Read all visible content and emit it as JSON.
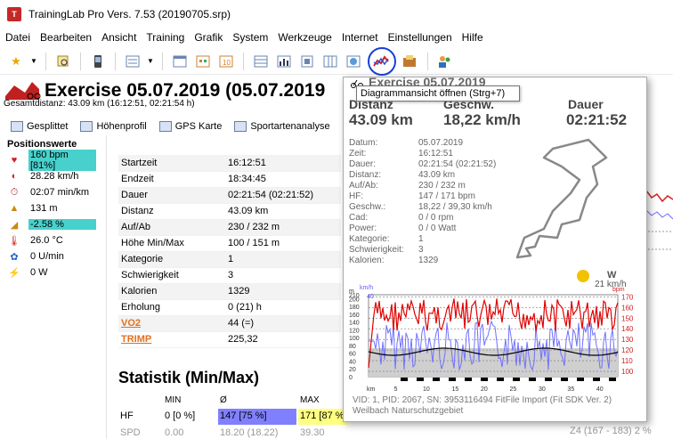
{
  "window": {
    "title": "TrainingLab Pro Vers. 7.53 (20190705.srp)"
  },
  "menu": [
    "Datei",
    "Bearbeiten",
    "Ansicht",
    "Training",
    "Grafik",
    "System",
    "Werkzeuge",
    "Internet",
    "Einstellungen",
    "Hilfe"
  ],
  "toolbar": {
    "icons": [
      "star-icon",
      "search-icon",
      "device-icon",
      "list-icon",
      "calendar-icon",
      "calendar-icon",
      "table-icon",
      "bar-chart-icon",
      "report-icon",
      "grid-icon",
      "world-icon",
      "diagram-icon",
      "import-icon",
      "users-icon"
    ]
  },
  "tooltip": "Diagrammansicht öffnen (Strg+7)",
  "exercise": {
    "title": "Exercise 05.07.2019 (05.07.2019",
    "subtitle": "Gesamtdistanz: 43.09 km (16:12:51, 02:21:54 h)"
  },
  "tabs": [
    "Gesplittet",
    "Höhenprofil",
    "GPS Karte",
    "Sportartenanalyse"
  ],
  "positions": {
    "title": "Positionswerte",
    "rows": [
      {
        "icon": "heart-icon",
        "value": "160 bpm [81%]",
        "highlight": "cyan"
      },
      {
        "icon": "speedometer-icon",
        "value": "28.28 km/h"
      },
      {
        "icon": "stopwatch-icon",
        "value": "02:07 min/km"
      },
      {
        "icon": "altitude-icon",
        "value": "131 m"
      },
      {
        "icon": "gradient-icon",
        "value": "-2.58 %",
        "highlight": "cyan"
      },
      {
        "icon": "thermometer-icon",
        "value": "26.0 °C"
      },
      {
        "icon": "cadence-icon",
        "value": "0 U/min"
      },
      {
        "icon": "power-icon",
        "value": "0 W"
      }
    ]
  },
  "info": [
    {
      "label": "Startzeit",
      "value": "16:12:51"
    },
    {
      "label": "Endzeit",
      "value": "18:34:45"
    },
    {
      "label": "Dauer",
      "value": "02:21:54 (02:21:52)"
    },
    {
      "label": "Distanz",
      "value": "43.09 km"
    },
    {
      "label": "Auf/Ab",
      "value": "230 / 232 m"
    },
    {
      "label": "Höhe Min/Max",
      "value": "100 / 151 m"
    },
    {
      "label": "Kategorie",
      "value": "1"
    },
    {
      "label": "Schwierigkeit",
      "value": "3"
    },
    {
      "label": "Kalorien",
      "value": "1329"
    },
    {
      "label": "Erholung",
      "value": "0 (21) h"
    },
    {
      "label": "VO2",
      "value": "44  (=)",
      "link": true
    },
    {
      "label": "TRIMP",
      "value": "225,32",
      "link": true
    }
  ],
  "stats": {
    "title": "Statistik (Min/Max)",
    "headers": [
      "MIN",
      "Ø",
      "MAX"
    ],
    "hf": {
      "label": "HF",
      "min": "0 [0 %]",
      "avg": "147 [75 %]",
      "max": "171 [87 %"
    },
    "spd": {
      "label": "SPD",
      "min": "0.00",
      "avg": "18.20 (18.22)",
      "max": "39.30"
    }
  },
  "background_right": "Z4 (167 - 183)  2 %",
  "popup": {
    "title": "Exercise 05.07.2019",
    "labels": {
      "distance": "Distanz",
      "speed": "Geschw.",
      "duration": "Dauer"
    },
    "values": {
      "distance": "43.09 km",
      "speed": "18,22 km/h",
      "duration": "02:21:52"
    },
    "details": [
      {
        "k": "Datum:",
        "v": "05.07.2019"
      },
      {
        "k": "Zeit:",
        "v": "16:12:51"
      },
      {
        "k": "Dauer:",
        "v": "02:21:54 (02:21:52)"
      },
      {
        "k": "Distanz:",
        "v": "43.09 km"
      },
      {
        "k": "Auf/Ab:",
        "v": "230 / 232 m"
      },
      {
        "k": "HF:",
        "v": "147 / 171 bpm"
      },
      {
        "k": "Geschw.:",
        "v": "18,22 / 39,30 km/h"
      },
      {
        "k": "Cad:",
        "v": "0 / 0 rpm"
      },
      {
        "k": "Power:",
        "v": "0 / 0 Watt"
      },
      {
        "k": "Kategorie:",
        "v": "1"
      },
      {
        "k": "Schwierigkeit:",
        "v": "3"
      },
      {
        "k": "Kalorien:",
        "v": "1329"
      }
    ],
    "weather": {
      "wind": "W",
      "wind_speed": "21 km/h"
    },
    "footer1": "VID: 1, PID: 2067, SN: 3953116494 FitFile Import (Fit SDK Ver. 2)",
    "footer2": "Weilbach Naturschutzgebiet"
  },
  "chart_data": {
    "type": "line",
    "x": [
      0,
      5,
      10,
      15,
      20,
      25,
      30,
      35,
      40
    ],
    "xlabel": "km",
    "series": [
      {
        "name": "m",
        "axis": "left",
        "color": "#000000"
      },
      {
        "name": "km/h",
        "axis": "left",
        "color": "#7070ff"
      },
      {
        "name": "bpm",
        "axis": "right",
        "color": "#e00000"
      }
    ],
    "y_left_ticks": [
      0,
      20,
      40,
      60,
      80,
      100,
      120,
      140,
      160,
      180,
      200,
      210
    ],
    "y_left_ticks_kmh": [
      10,
      20,
      30,
      40
    ],
    "y_right_ticks": [
      100,
      110,
      120,
      130,
      140,
      150,
      160,
      170
    ],
    "x_ticks": [
      "km",
      "5",
      "10",
      "15",
      "20",
      "25",
      "30",
      "35",
      "40"
    ],
    "y_left_labels": [
      "m",
      "km/h",
      "40"
    ],
    "y_right_label": "bpm"
  }
}
